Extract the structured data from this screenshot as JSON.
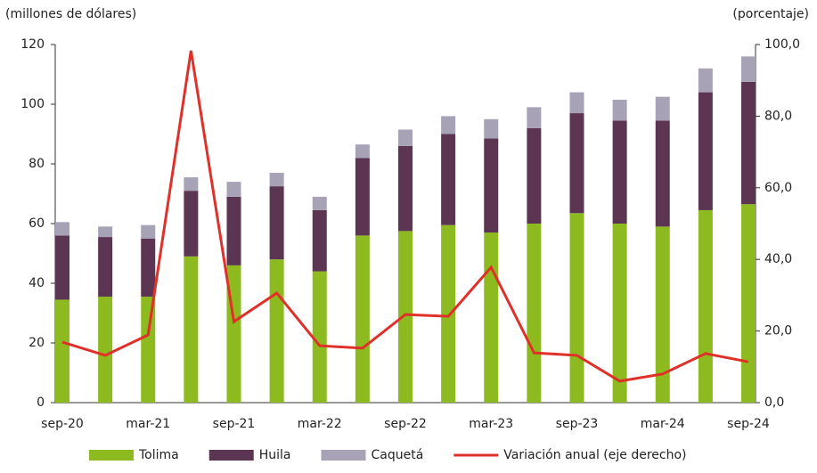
{
  "chart_data": {
    "type": "bar",
    "stacked": true,
    "y_label": "(millones de dólares)",
    "y2_label": "(porcentaje)",
    "categories": [
      "sep-20",
      null,
      "mar-21",
      null,
      "sep-21",
      null,
      "mar-22",
      null,
      "sep-22",
      null,
      "mar-23",
      null,
      "sep-23",
      null,
      "mar-24",
      null,
      "sep-24"
    ],
    "series": [
      {
        "name": "Tolima",
        "color": "#8dba1e",
        "type": "bar",
        "values": [
          34.5,
          35.5,
          35.5,
          49,
          46,
          48,
          44,
          56,
          57.5,
          59.5,
          57,
          60,
          63.5,
          60,
          59,
          64.5,
          66.5
        ]
      },
      {
        "name": "Huila",
        "color": "#5c3552",
        "type": "bar",
        "values": [
          21.5,
          20,
          19.5,
          22,
          23,
          24.5,
          20.5,
          26,
          28.5,
          30.5,
          31.5,
          32,
          33.5,
          34.5,
          35.5,
          39.5,
          41
        ]
      },
      {
        "name": "Caquetá",
        "color": "#a7a2b6",
        "type": "bar",
        "values": [
          4.5,
          3.5,
          4.5,
          4.5,
          5,
          4.5,
          4.5,
          4.5,
          5.5,
          6,
          6.5,
          7,
          7,
          7,
          8,
          8,
          8.5
        ]
      },
      {
        "name": "Variación anual (eje derecho)",
        "color": "#e0302a",
        "type": "line",
        "axis": "y2",
        "values": [
          16.9,
          13.2,
          18.9,
          98.3,
          22.6,
          30.6,
          15.9,
          15.2,
          24.6,
          24.1,
          37.8,
          13.9,
          13.2,
          6.0,
          8.0,
          13.7,
          11.4
        ]
      }
    ],
    "ylim": [
      0,
      120
    ],
    "yticks": [
      0,
      20,
      40,
      60,
      80,
      100,
      120
    ],
    "y2lim": [
      0,
      100
    ],
    "y2ticks": [
      {
        "value": 0,
        "label": "0,0"
      },
      {
        "value": 20,
        "label": "20,0"
      },
      {
        "value": 40,
        "label": "40,0"
      },
      {
        "value": 60,
        "label": "60,0"
      },
      {
        "value": 80,
        "label": "80,0"
      },
      {
        "value": 100,
        "label": "100,0"
      }
    ],
    "legend": "bottom"
  }
}
